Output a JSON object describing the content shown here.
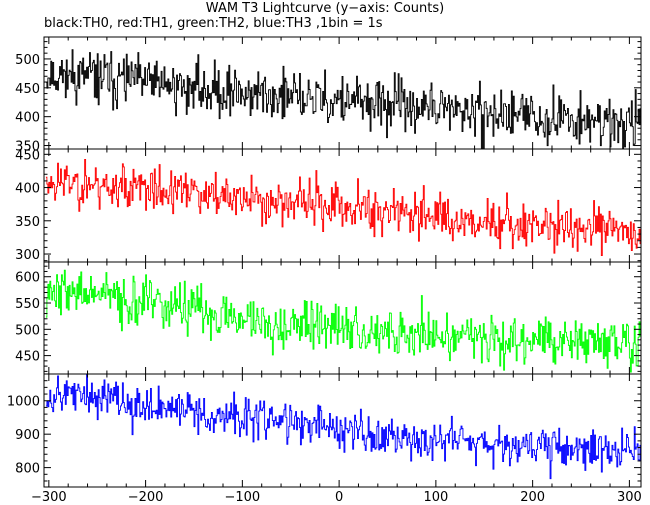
{
  "chart_data": {
    "type": "line",
    "title": "WAM T3 Lightcurve (y−axis: Counts)",
    "subtitle": "black:TH0, red:TH1, green:TH2, blue:TH3 ,1bin = 1s",
    "xlim": [
      -305,
      312
    ],
    "x_ticks": [
      -300,
      -200,
      -100,
      0,
      100,
      200,
      300
    ],
    "x_tick_labels": [
      "−300",
      "−200",
      "−100",
      "0",
      "100",
      "200",
      "300"
    ],
    "x_step": 1,
    "grid": false,
    "panels": [
      {
        "series_name": "TH0",
        "color": "#000000",
        "ylim": [
          344,
          538
        ],
        "y_ticks": [
          350,
          400,
          450,
          500
        ],
        "trend_x": [
          -300,
          -250,
          -150,
          -50,
          50,
          150,
          250,
          305
        ],
        "trend_y": [
          475,
          468,
          450,
          433,
          420,
          405,
          395,
          388
        ],
        "noise": 22,
        "seed": 11
      },
      {
        "series_name": "TH1",
        "color": "#ff0000",
        "ylim": [
          288,
          458
        ],
        "y_ticks": [
          300,
          350,
          400,
          450
        ],
        "trend_x": [
          -300,
          -250,
          -150,
          -50,
          50,
          150,
          250,
          305
        ],
        "trend_y": [
          410,
          405,
          390,
          378,
          365,
          350,
          338,
          333
        ],
        "noise": 17,
        "seed": 23
      },
      {
        "series_name": "TH2",
        "color": "#00ff00",
        "ylim": [
          415,
          628
        ],
        "y_ticks": [
          450,
          500,
          550,
          600
        ],
        "trend_x": [
          -300,
          -250,
          -150,
          -50,
          50,
          150,
          250,
          305
        ],
        "trend_y": [
          575,
          565,
          535,
          510,
          495,
          485,
          478,
          472
        ],
        "noise": 23,
        "seed": 37
      },
      {
        "series_name": "TH3",
        "color": "#0000ff",
        "ylim": [
          742,
          1080
        ],
        "y_ticks": [
          800,
          900,
          1000
        ],
        "trend_x": [
          -300,
          -250,
          -150,
          -50,
          50,
          150,
          250,
          305
        ],
        "trend_y": [
          1025,
          1010,
          965,
          935,
          895,
          880,
          855,
          850
        ],
        "noise": 30,
        "seed": 53
      }
    ]
  }
}
